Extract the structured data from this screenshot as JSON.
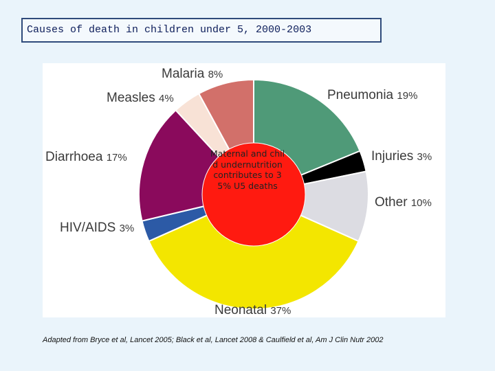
{
  "chart_data": {
    "type": "pie",
    "title": "Causes of death in children under 5, 2000-2003",
    "categories": [
      "Pneumonia",
      "Injuries",
      "Other",
      "Neonatal",
      "HIV/AIDS",
      "Diarrhoea",
      "Measles",
      "Malaria"
    ],
    "values": [
      19,
      3,
      10,
      37,
      3,
      17,
      4,
      8
    ],
    "value_labels": [
      "19%",
      "3%",
      "10%",
      "37%",
      "3%",
      "17%",
      "4%",
      "8%"
    ],
    "colors": [
      "#4f9a78",
      "#000000",
      "#dcdce2",
      "#f3e600",
      "#2c5aa6",
      "#8a0a5c",
      "#f8e2d6",
      "#d2706a"
    ],
    "annotation": "Maternal and child undernutrition contributes to 35% U5 deaths",
    "source": "Adapted from Bryce et al, Lancet 2005; Black et al, Lancet 2008 & Caulfield et al, Am J Clin Nutr 2002"
  }
}
